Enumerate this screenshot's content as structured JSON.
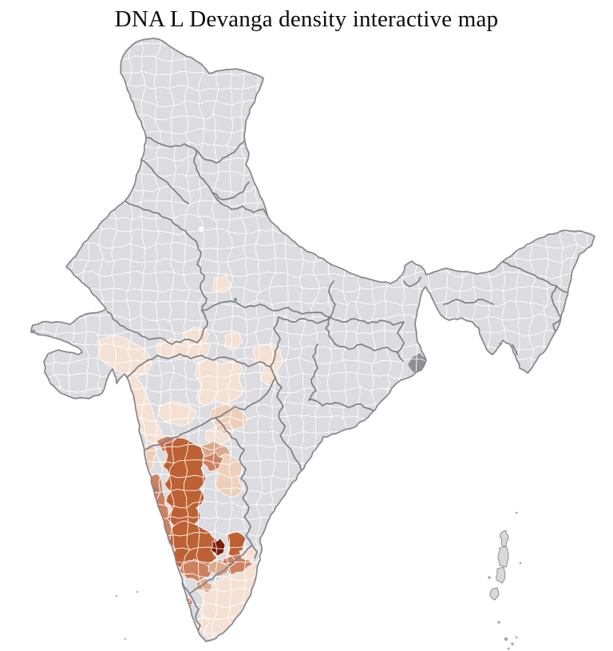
{
  "title": "DNA L Devanga density interactive map",
  "map": {
    "label": "india-district-choropleth",
    "type": "choropleth",
    "background_color": "#ffffff",
    "land_color": "#dcdce0",
    "district_line_color": "#ffffff",
    "state_border_color": "#7d7d82",
    "coast_border_color": "#85858a",
    "dense_urban_color": "#8f8f94",
    "capital_cell_color": "#fcfcfc",
    "island_color": "#d9d9dc",
    "density_palette": [
      "#f4e1d4",
      "#edcfba",
      "#dba98b",
      "#cd8160",
      "#bd6134",
      "#7c1d05"
    ],
    "density_levels": [
      "level-1",
      "level-2",
      "level-3",
      "level-4",
      "level-5",
      "level-6"
    ]
  }
}
